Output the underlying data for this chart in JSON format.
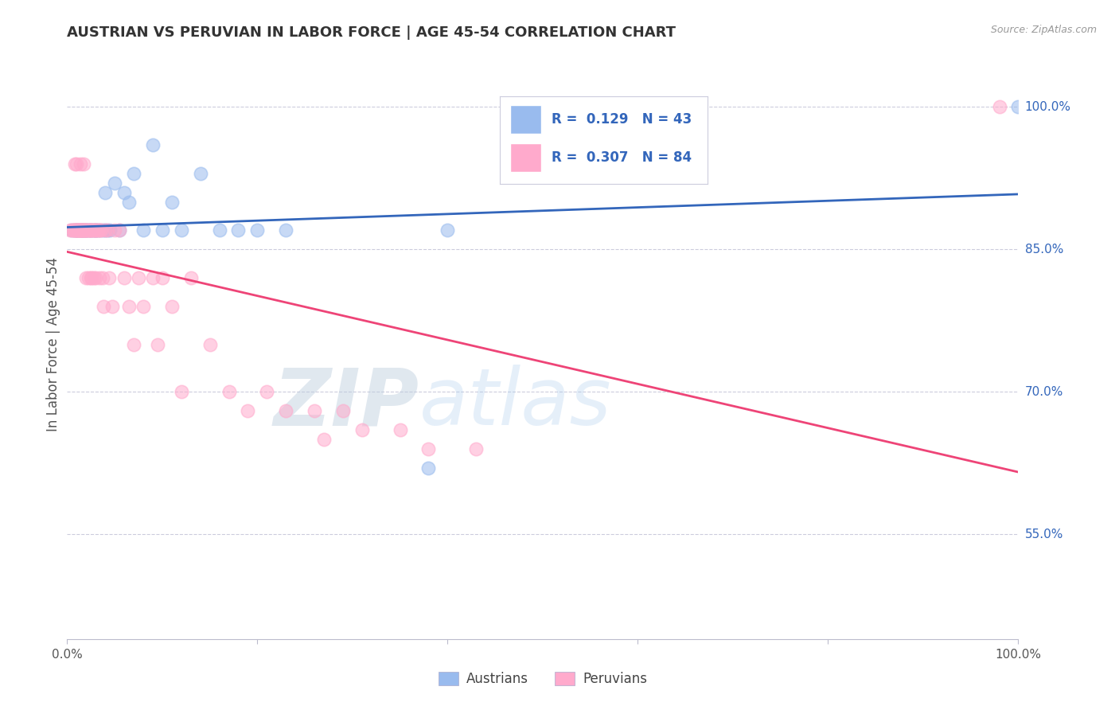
{
  "title": "AUSTRIAN VS PERUVIAN IN LABOR FORCE | AGE 45-54 CORRELATION CHART",
  "source": "Source: ZipAtlas.com",
  "legend_label1": "Austrians",
  "legend_label2": "Peruvians",
  "R_austrians": 0.129,
  "N_austrians": 43,
  "R_peruvians": 0.307,
  "N_peruvians": 84,
  "blue_color": "#99BBEE",
  "pink_color": "#FFAACC",
  "blue_line_color": "#3366BB",
  "pink_line_color": "#EE4477",
  "title_color": "#333333",
  "right_label_color": "#3366BB",
  "source_color": "#999999",
  "ylabel_label_color": "#555555",
  "grid_color": "#ccccdd",
  "ylabel_right_ticks": [
    "100.0%",
    "85.0%",
    "70.0%",
    "55.0%"
  ],
  "ylabel_right_vals": [
    1.0,
    0.85,
    0.7,
    0.55
  ],
  "xlim": [
    0.0,
    1.0
  ],
  "ylim": [
    0.44,
    1.06
  ],
  "x_austrians": [
    0.005,
    0.008,
    0.01,
    0.01,
    0.012,
    0.015,
    0.015,
    0.015,
    0.018,
    0.018,
    0.02,
    0.02,
    0.022,
    0.025,
    0.025,
    0.028,
    0.03,
    0.03,
    0.032,
    0.035,
    0.038,
    0.04,
    0.04,
    0.042,
    0.045,
    0.05,
    0.055,
    0.06,
    0.065,
    0.07,
    0.08,
    0.09,
    0.1,
    0.11,
    0.12,
    0.14,
    0.16,
    0.18,
    0.2,
    0.23,
    0.38,
    0.4,
    1.0
  ],
  "y_austrians": [
    0.87,
    0.87,
    0.87,
    0.87,
    0.87,
    0.87,
    0.87,
    0.87,
    0.87,
    0.87,
    0.87,
    0.87,
    0.87,
    0.87,
    0.87,
    0.87,
    0.87,
    0.87,
    0.87,
    0.87,
    0.87,
    0.87,
    0.91,
    0.87,
    0.87,
    0.92,
    0.87,
    0.91,
    0.9,
    0.93,
    0.87,
    0.96,
    0.87,
    0.9,
    0.87,
    0.93,
    0.87,
    0.87,
    0.87,
    0.87,
    0.62,
    0.87,
    1.0
  ],
  "x_peruvians": [
    0.003,
    0.005,
    0.006,
    0.007,
    0.008,
    0.008,
    0.008,
    0.01,
    0.01,
    0.01,
    0.01,
    0.012,
    0.012,
    0.012,
    0.012,
    0.013,
    0.014,
    0.014,
    0.015,
    0.015,
    0.016,
    0.016,
    0.017,
    0.017,
    0.018,
    0.018,
    0.019,
    0.019,
    0.02,
    0.02,
    0.021,
    0.022,
    0.022,
    0.023,
    0.024,
    0.024,
    0.025,
    0.025,
    0.026,
    0.026,
    0.027,
    0.028,
    0.028,
    0.029,
    0.03,
    0.03,
    0.031,
    0.032,
    0.033,
    0.034,
    0.035,
    0.036,
    0.037,
    0.038,
    0.04,
    0.042,
    0.044,
    0.047,
    0.05,
    0.055,
    0.06,
    0.065,
    0.07,
    0.075,
    0.08,
    0.09,
    0.095,
    0.1,
    0.11,
    0.12,
    0.13,
    0.15,
    0.17,
    0.19,
    0.21,
    0.23,
    0.26,
    0.27,
    0.29,
    0.31,
    0.35,
    0.38,
    0.43,
    0.98
  ],
  "y_peruvians": [
    0.87,
    0.87,
    0.87,
    0.87,
    0.87,
    0.94,
    0.87,
    0.87,
    0.94,
    0.87,
    0.87,
    0.87,
    0.87,
    0.87,
    0.87,
    0.87,
    0.94,
    0.87,
    0.87,
    0.87,
    0.87,
    0.87,
    0.94,
    0.87,
    0.87,
    0.87,
    0.87,
    0.87,
    0.87,
    0.82,
    0.87,
    0.87,
    0.82,
    0.87,
    0.87,
    0.87,
    0.87,
    0.82,
    0.87,
    0.82,
    0.87,
    0.87,
    0.82,
    0.87,
    0.87,
    0.82,
    0.87,
    0.87,
    0.87,
    0.82,
    0.87,
    0.87,
    0.82,
    0.79,
    0.87,
    0.87,
    0.82,
    0.79,
    0.87,
    0.87,
    0.82,
    0.79,
    0.75,
    0.82,
    0.79,
    0.82,
    0.75,
    0.82,
    0.79,
    0.7,
    0.82,
    0.75,
    0.7,
    0.68,
    0.7,
    0.68,
    0.68,
    0.65,
    0.68,
    0.66,
    0.66,
    0.64,
    0.64,
    1.0
  ]
}
